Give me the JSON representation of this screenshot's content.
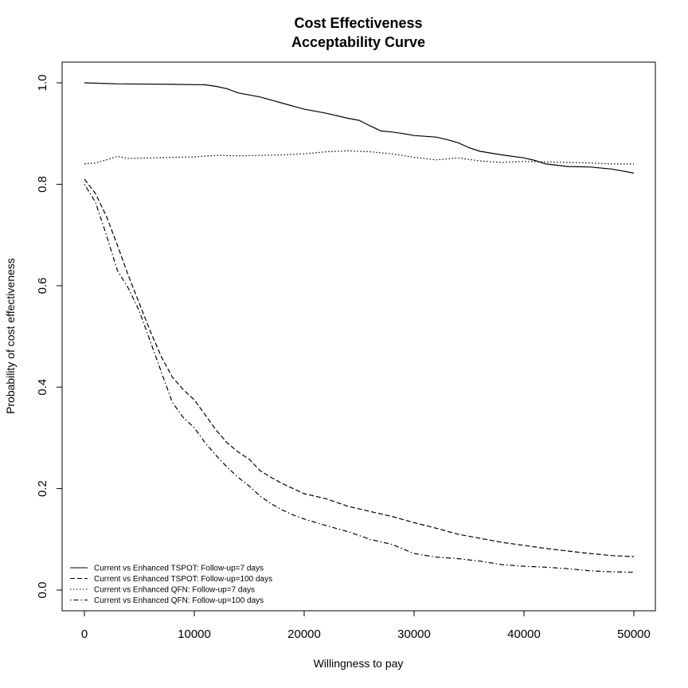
{
  "chart_data": {
    "type": "line",
    "title": [
      "Cost Effectiveness",
      "Acceptability Curve"
    ],
    "xlabel": "Willingness to pay",
    "ylabel": "Probability of cost effectiveness",
    "xlim": [
      0,
      50000
    ],
    "ylim": [
      0,
      1
    ],
    "xticks": [
      0,
      10000,
      20000,
      30000,
      40000,
      50000
    ],
    "xtick_labels": [
      "0",
      "10000",
      "20000",
      "30000",
      "40000",
      "50000"
    ],
    "yticks": [
      0,
      0.2,
      0.4,
      0.6,
      0.8,
      1
    ],
    "ytick_labels": [
      "0.0",
      "0.2",
      "0.4",
      "0.6",
      "0.8",
      "1.0"
    ],
    "grid": false,
    "legend_position": "bottom-left",
    "series": [
      {
        "name": "Current  vs  Enhanced TSPOT: Follow-up=7 days",
        "dash": "solid",
        "x": [
          0,
          3000,
          8000,
          11000,
          12000,
          13000,
          14000,
          16000,
          18000,
          20000,
          22000,
          24000,
          25000,
          26000,
          27000,
          28000,
          29000,
          30000,
          32000,
          33000,
          34000,
          35000,
          36000,
          38000,
          40000,
          41000,
          42000,
          44000,
          46000,
          48000,
          49000,
          50000
        ],
        "y": [
          1.0,
          0.998,
          0.997,
          0.996,
          0.993,
          0.988,
          0.98,
          0.972,
          0.96,
          0.948,
          0.94,
          0.93,
          0.926,
          0.915,
          0.905,
          0.903,
          0.9,
          0.896,
          0.893,
          0.888,
          0.882,
          0.872,
          0.865,
          0.858,
          0.852,
          0.847,
          0.84,
          0.835,
          0.834,
          0.83,
          0.826,
          0.822
        ]
      },
      {
        "name": "Current  vs  Enhanced TSPOT: Follow-up=100 days",
        "dash": "dashed",
        "x": [
          0,
          1000,
          2000,
          3000,
          4000,
          5000,
          6000,
          7000,
          8000,
          9000,
          10000,
          11000,
          12000,
          13000,
          14000,
          15000,
          16000,
          17000,
          18000,
          19000,
          20000,
          22000,
          24000,
          26000,
          28000,
          30000,
          32000,
          34000,
          36000,
          38000,
          40000,
          42000,
          44000,
          46000,
          48000,
          50000
        ],
        "y": [
          0.81,
          0.782,
          0.737,
          0.68,
          0.62,
          0.565,
          0.51,
          0.46,
          0.42,
          0.395,
          0.375,
          0.345,
          0.315,
          0.29,
          0.272,
          0.258,
          0.235,
          0.222,
          0.21,
          0.2,
          0.19,
          0.18,
          0.165,
          0.155,
          0.145,
          0.133,
          0.122,
          0.11,
          0.102,
          0.094,
          0.088,
          0.082,
          0.077,
          0.072,
          0.068,
          0.066
        ]
      },
      {
        "name": "Current  vs  Enhanced QFN: Follow-up=7 days",
        "dash": "dotted",
        "x": [
          0,
          1000,
          2000,
          3000,
          4000,
          6000,
          8000,
          10000,
          12000,
          14000,
          16000,
          18000,
          20000,
          22000,
          24000,
          26000,
          28000,
          30000,
          32000,
          34000,
          36000,
          38000,
          40000,
          42000,
          44000,
          46000,
          48000,
          50000
        ],
        "y": [
          0.84,
          0.842,
          0.848,
          0.855,
          0.851,
          0.852,
          0.853,
          0.854,
          0.857,
          0.856,
          0.857,
          0.858,
          0.86,
          0.864,
          0.866,
          0.864,
          0.86,
          0.853,
          0.848,
          0.852,
          0.846,
          0.843,
          0.845,
          0.844,
          0.843,
          0.842,
          0.84,
          0.84
        ]
      },
      {
        "name": "Current  vs  Enhanced QFN: Follow-up=100 days",
        "dash": "dashdot",
        "x": [
          0,
          1000,
          2000,
          3000,
          4000,
          5000,
          6000,
          7000,
          7500,
          8000,
          9000,
          10000,
          11000,
          12000,
          13000,
          14000,
          15000,
          16000,
          17000,
          18000,
          19000,
          20000,
          22000,
          24000,
          26000,
          28000,
          30000,
          32000,
          34000,
          36000,
          38000,
          40000,
          42000,
          44000,
          46000,
          48000,
          50000
        ],
        "y": [
          0.8,
          0.765,
          0.7,
          0.63,
          0.595,
          0.55,
          0.49,
          0.43,
          0.4,
          0.37,
          0.34,
          0.32,
          0.29,
          0.265,
          0.242,
          0.222,
          0.205,
          0.185,
          0.17,
          0.158,
          0.148,
          0.14,
          0.127,
          0.115,
          0.1,
          0.09,
          0.072,
          0.065,
          0.062,
          0.057,
          0.05,
          0.047,
          0.045,
          0.042,
          0.038,
          0.036,
          0.035
        ]
      }
    ]
  }
}
